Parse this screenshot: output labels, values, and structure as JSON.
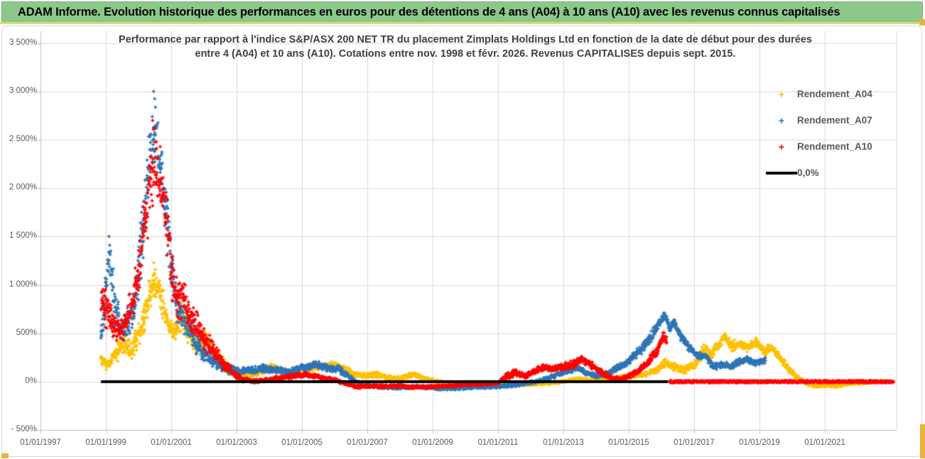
{
  "banner": {
    "title": "ADAM Informe. Evolution historique des performances en euros pour des détentions de 4 ans (A04) à 10 ans (A10) avec les revenus connus capitalisés"
  },
  "chart": {
    "title_line1": "Performance par rapport à l'indice S&P/ASX 200 NET TR  du placement Zimplats Holdings Ltd en fonction de la date de début pour des durées",
    "title_line2": "entre 4 (A04) et 10 ans (A10).  Cotations entre nov. 1998 et févr. 2026.  Revenus CAPITALISES depuis sept. 2015."
  },
  "colors": {
    "banner_green": "#8CC88A",
    "gold_accent": "#E8B33C",
    "grid": "#D9D9D9",
    "axis_line": "#BFBFBF",
    "axis_text": "#595959",
    "title_text": "#3F3F3F"
  },
  "chart_data": {
    "type": "scatter",
    "marker": "plus",
    "grid": true,
    "legend_position": "right",
    "title": "Performance par rapport à l'indice S&P/ASX 200 NET TR du placement Zimplats Holdings Ltd en fonction de la date de début pour des durées entre 4 (A04) et 10 ans (A10). Cotations entre nov. 1998 et févr. 2026. Revenus CAPITALISES depuis sept. 2015.",
    "ylim": [
      -500,
      3500
    ],
    "xlim_years": [
      1997.0,
      2023.2
    ],
    "y_ticks": [
      [
        3500,
        "3 500%"
      ],
      [
        3000,
        "3 000%"
      ],
      [
        2500,
        "2 500%"
      ],
      [
        2000,
        "2 000%"
      ],
      [
        1500,
        "1 500%"
      ],
      [
        1000,
        "1 000%"
      ],
      [
        500,
        "500%"
      ],
      [
        0,
        "0%"
      ],
      [
        -500,
        "- 500%"
      ]
    ],
    "x_ticks": [
      [
        1997,
        "01/01/1997"
      ],
      [
        1999,
        "01/01/1999"
      ],
      [
        2001,
        "01/01/2001"
      ],
      [
        2003,
        "01/01/2003"
      ],
      [
        2005,
        "01/01/2005"
      ],
      [
        2007,
        "01/01/2007"
      ],
      [
        2009,
        "01/01/2009"
      ],
      [
        2011,
        "01/01/2011"
      ],
      [
        2013,
        "01/01/2013"
      ],
      [
        2015,
        "01/01/2015"
      ],
      [
        2017,
        "01/01/2017"
      ],
      [
        2019,
        "01/01/2019"
      ],
      [
        2021,
        "01/01/2021"
      ]
    ],
    "series": [
      {
        "name": "Rendement_A04",
        "color": "#FFC000",
        "kind": "scatter",
        "anchors": [
          [
            1998.85,
            240,
            70
          ],
          [
            1999.05,
            170,
            60
          ],
          [
            1999.3,
            300,
            110
          ],
          [
            1999.55,
            420,
            140
          ],
          [
            1999.75,
            300,
            110
          ],
          [
            2000.0,
            480,
            150
          ],
          [
            2000.2,
            720,
            180
          ],
          [
            2000.45,
            1050,
            200
          ],
          [
            2000.65,
            950,
            180
          ],
          [
            2000.85,
            680,
            150
          ],
          [
            2001.05,
            520,
            130
          ],
          [
            2001.3,
            680,
            170
          ],
          [
            2001.55,
            520,
            140
          ],
          [
            2001.8,
            380,
            110
          ],
          [
            2002.1,
            430,
            110
          ],
          [
            2002.4,
            260,
            90
          ],
          [
            2002.7,
            140,
            60
          ],
          [
            2003.0,
            70,
            40
          ],
          [
            2003.3,
            55,
            35
          ],
          [
            2003.7,
            110,
            40
          ],
          [
            2004.0,
            145,
            45
          ],
          [
            2004.3,
            120,
            40
          ],
          [
            2004.6,
            85,
            35
          ],
          [
            2004.95,
            115,
            40
          ],
          [
            2005.3,
            150,
            45
          ],
          [
            2005.65,
            160,
            45
          ],
          [
            2006.0,
            185,
            45
          ],
          [
            2006.3,
            125,
            40
          ],
          [
            2006.6,
            75,
            35
          ],
          [
            2006.95,
            60,
            30
          ],
          [
            2007.25,
            80,
            32
          ],
          [
            2007.6,
            38,
            25
          ],
          [
            2008.0,
            30,
            24
          ],
          [
            2008.4,
            72,
            30
          ],
          [
            2008.8,
            25,
            20
          ],
          [
            2009.2,
            0,
            18
          ],
          [
            2009.6,
            -18,
            15
          ],
          [
            2010.1,
            -28,
            14
          ],
          [
            2010.6,
            -32,
            14
          ],
          [
            2011.1,
            -26,
            14
          ],
          [
            2011.6,
            -32,
            14
          ],
          [
            2012.1,
            -24,
            14
          ],
          [
            2012.6,
            -14,
            14
          ],
          [
            2013.05,
            2,
            15
          ],
          [
            2013.45,
            26,
            17
          ],
          [
            2013.85,
            18,
            15
          ],
          [
            2014.25,
            28,
            16
          ],
          [
            2014.65,
            42,
            20
          ],
          [
            2015.05,
            58,
            22
          ],
          [
            2015.45,
            72,
            24
          ],
          [
            2015.85,
            115,
            30
          ],
          [
            2016.1,
            195,
            45
          ],
          [
            2016.4,
            150,
            42
          ],
          [
            2016.7,
            125,
            40
          ],
          [
            2017.0,
            160,
            45
          ],
          [
            2017.3,
            330,
            65
          ],
          [
            2017.55,
            275,
            55
          ],
          [
            2017.75,
            390,
            65
          ],
          [
            2017.95,
            470,
            55
          ],
          [
            2018.15,
            365,
            55
          ],
          [
            2018.4,
            395,
            55
          ],
          [
            2018.65,
            350,
            50
          ],
          [
            2018.9,
            405,
            50
          ],
          [
            2019.15,
            315,
            50
          ],
          [
            2019.4,
            350,
            45
          ],
          [
            2019.65,
            235,
            45
          ],
          [
            2019.9,
            125,
            38
          ],
          [
            2020.15,
            42,
            24
          ],
          [
            2020.45,
            -22,
            16
          ],
          [
            2020.75,
            -48,
            14
          ],
          [
            2021.05,
            -36,
            14
          ],
          [
            2021.35,
            -48,
            13
          ],
          [
            2021.65,
            -26,
            12
          ],
          [
            2021.95,
            -16,
            11
          ],
          [
            2022.25,
            -10,
            10
          ],
          [
            2022.5,
            -6,
            9
          ]
        ],
        "outliers": []
      },
      {
        "name": "Rendement_A07",
        "color": "#2E75B6",
        "kind": "scatter",
        "anchors": [
          [
            1998.85,
            460,
            130
          ],
          [
            1999.0,
            900,
            320
          ],
          [
            1999.1,
            1380,
            300
          ],
          [
            1999.25,
            820,
            260
          ],
          [
            1999.45,
            560,
            160
          ],
          [
            1999.7,
            620,
            160
          ],
          [
            1999.95,
            950,
            260
          ],
          [
            2000.15,
            1650,
            380
          ],
          [
            2000.35,
            2320,
            430
          ],
          [
            2000.5,
            2480,
            470
          ],
          [
            2000.65,
            2300,
            400
          ],
          [
            2000.85,
            1850,
            360
          ],
          [
            2001.0,
            1150,
            300
          ],
          [
            2001.2,
            790,
            210
          ],
          [
            2001.4,
            660,
            180
          ],
          [
            2001.62,
            500,
            150
          ],
          [
            2001.85,
            350,
            110
          ],
          [
            2002.1,
            255,
            85
          ],
          [
            2002.4,
            185,
            70
          ],
          [
            2002.7,
            135,
            55
          ],
          [
            2003.0,
            105,
            42
          ],
          [
            2003.4,
            115,
            40
          ],
          [
            2003.8,
            135,
            42
          ],
          [
            2004.2,
            122,
            40
          ],
          [
            2004.6,
            100,
            36
          ],
          [
            2005.0,
            135,
            40
          ],
          [
            2005.4,
            175,
            45
          ],
          [
            2005.8,
            142,
            40
          ],
          [
            2006.1,
            132,
            40
          ],
          [
            2006.4,
            62,
            32
          ],
          [
            2006.7,
            -12,
            26
          ],
          [
            2007.0,
            -42,
            22
          ],
          [
            2007.5,
            -56,
            20
          ],
          [
            2008.0,
            -62,
            20
          ],
          [
            2008.5,
            -52,
            20
          ],
          [
            2009.0,
            -62,
            19
          ],
          [
            2009.5,
            -72,
            18
          ],
          [
            2010.0,
            -62,
            18
          ],
          [
            2010.5,
            -56,
            17
          ],
          [
            2011.0,
            -50,
            17
          ],
          [
            2011.4,
            -40,
            17
          ],
          [
            2011.8,
            -20,
            18
          ],
          [
            2012.2,
            2,
            20
          ],
          [
            2012.6,
            42,
            24
          ],
          [
            2013.0,
            92,
            28
          ],
          [
            2013.4,
            142,
            32
          ],
          [
            2013.7,
            92,
            28
          ],
          [
            2014.0,
            62,
            25
          ],
          [
            2014.3,
            82,
            28
          ],
          [
            2014.6,
            132,
            32
          ],
          [
            2014.9,
            185,
            38
          ],
          [
            2015.15,
            265,
            46
          ],
          [
            2015.4,
            335,
            50
          ],
          [
            2015.6,
            425,
            55
          ],
          [
            2015.8,
            525,
            62
          ],
          [
            2016.0,
            655,
            55
          ],
          [
            2016.1,
            685,
            48
          ],
          [
            2016.25,
            565,
            55
          ],
          [
            2016.4,
            605,
            50
          ],
          [
            2016.55,
            485,
            55
          ],
          [
            2016.72,
            405,
            50
          ],
          [
            2016.9,
            335,
            46
          ],
          [
            2017.1,
            265,
            42
          ],
          [
            2017.35,
            262,
            38
          ],
          [
            2017.6,
            152,
            38
          ],
          [
            2017.85,
            182,
            38
          ],
          [
            2018.1,
            152,
            36
          ],
          [
            2018.35,
            202,
            36
          ],
          [
            2018.6,
            232,
            36
          ],
          [
            2018.8,
            192,
            36
          ],
          [
            2019.0,
            205,
            36
          ],
          [
            2019.18,
            222,
            32
          ]
        ],
        "outliers": [
          [
            2000.46,
            3000
          ],
          [
            2000.42,
            2740
          ]
        ]
      },
      {
        "name": "Rendement_A10",
        "color": "#FF0000",
        "kind": "scatter",
        "anchors": [
          [
            1998.85,
            860,
            280
          ],
          [
            1999.0,
            800,
            250
          ],
          [
            1999.2,
            610,
            180
          ],
          [
            1999.4,
            530,
            150
          ],
          [
            1999.6,
            610,
            160
          ],
          [
            1999.8,
            810,
            200
          ],
          [
            2000.0,
            1120,
            260
          ],
          [
            2000.2,
            1620,
            360
          ],
          [
            2000.4,
            2180,
            420
          ],
          [
            2000.55,
            2300,
            380
          ],
          [
            2000.7,
            2020,
            350
          ],
          [
            2000.9,
            1520,
            310
          ],
          [
            2001.05,
            1020,
            250
          ],
          [
            2001.2,
            820,
            200
          ],
          [
            2001.4,
            860,
            200
          ],
          [
            2001.6,
            660,
            180
          ],
          [
            2001.8,
            560,
            150
          ],
          [
            2002.0,
            430,
            120
          ],
          [
            2002.3,
            330,
            100
          ],
          [
            2002.6,
            185,
            70
          ],
          [
            2002.9,
            85,
            42
          ],
          [
            2003.2,
            22,
            26
          ],
          [
            2003.6,
            2,
            20
          ],
          [
            2004.0,
            22,
            20
          ],
          [
            2004.4,
            42,
            24
          ],
          [
            2004.8,
            62,
            25
          ],
          [
            2005.2,
            72,
            25
          ],
          [
            2005.6,
            42,
            22
          ],
          [
            2006.0,
            18,
            20
          ],
          [
            2006.35,
            -22,
            18
          ],
          [
            2006.7,
            -52,
            18
          ],
          [
            2007.1,
            -42,
            17
          ],
          [
            2007.5,
            -52,
            17
          ],
          [
            2008.0,
            -46,
            17
          ],
          [
            2008.5,
            -56,
            17
          ],
          [
            2009.0,
            -52,
            16
          ],
          [
            2009.5,
            -42,
            15
          ],
          [
            2010.0,
            -32,
            14
          ],
          [
            2010.5,
            -26,
            14
          ],
          [
            2011.0,
            -15,
            14
          ],
          [
            2011.3,
            65,
            40
          ],
          [
            2011.55,
            92,
            34
          ],
          [
            2011.85,
            62,
            30
          ],
          [
            2012.15,
            112,
            34
          ],
          [
            2012.45,
            152,
            38
          ],
          [
            2012.75,
            132,
            38
          ],
          [
            2013.05,
            162,
            40
          ],
          [
            2013.35,
            182,
            42
          ],
          [
            2013.55,
            245,
            42
          ],
          [
            2013.85,
            172,
            40
          ],
          [
            2014.15,
            100,
            34
          ],
          [
            2014.45,
            40,
            25
          ],
          [
            2014.75,
            22,
            20
          ],
          [
            2015.05,
            62,
            28
          ],
          [
            2015.35,
            122,
            34
          ],
          [
            2015.65,
            225,
            48
          ],
          [
            2015.9,
            340,
            55
          ],
          [
            2016.05,
            470,
            55
          ],
          [
            2016.17,
            420,
            48
          ]
        ],
        "outliers": [
          [
            2000.43,
            2700
          ]
        ]
      },
      {
        "name": "0,0%",
        "color": "#000000",
        "kind": "zero_line",
        "x_start": 1998.85,
        "x_end": 2016.2,
        "y": 0
      }
    ],
    "flat_zero_extension": {
      "series": "Rendement_A10",
      "color": "#FF0000",
      "x_start": 2016.25,
      "x_end": 2023.1,
      "value": 0,
      "jitter_pct": 10
    }
  }
}
